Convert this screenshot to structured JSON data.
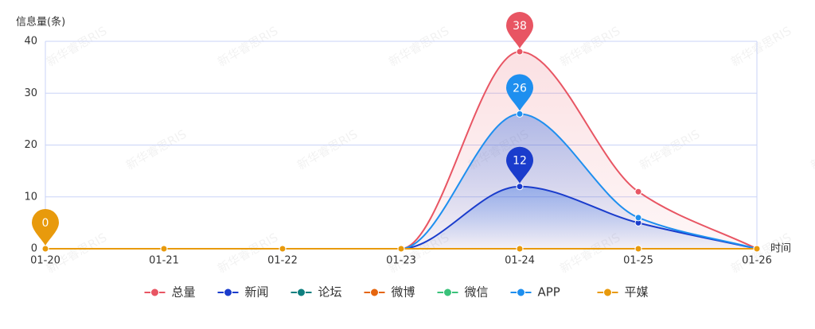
{
  "chart_data": {
    "type": "line",
    "y_label": "信息量(条)",
    "x_label": "时间",
    "watermark": "新华睿思RIS",
    "categories": [
      "01-20",
      "01-21",
      "01-22",
      "01-23",
      "01-24",
      "01-25",
      "01-26"
    ],
    "series": [
      {
        "name": "总量",
        "color": "#e85563",
        "area": true,
        "show_max_pin": true,
        "values": [
          0,
          0,
          0,
          0,
          38,
          11,
          0
        ]
      },
      {
        "name": "新闻",
        "color": "#1a3ccc",
        "area": true,
        "show_max_pin": true,
        "values": [
          0,
          0,
          0,
          0,
          12,
          5,
          0
        ]
      },
      {
        "name": "论坛",
        "color": "#0e7f7f",
        "values": [
          0,
          0,
          0,
          0,
          0,
          0,
          0
        ]
      },
      {
        "name": "微博",
        "color": "#e5650e",
        "values": [
          0,
          0,
          0,
          0,
          0,
          0,
          0
        ]
      },
      {
        "name": "微信",
        "color": "#3ac27a",
        "values": [
          0,
          0,
          0,
          0,
          0,
          0,
          0
        ]
      },
      {
        "name": "APP",
        "color": "#1e8fef",
        "area": true,
        "show_max_pin": true,
        "values": [
          0,
          0,
          0,
          0,
          26,
          6,
          0
        ]
      },
      {
        "name": "平媒",
        "color": "#e89a0c",
        "show_max_pin": true,
        "values": [
          0,
          0,
          0,
          0,
          0,
          0,
          0
        ]
      }
    ],
    "ylim": [
      0,
      40
    ],
    "yticks": [
      0,
      10,
      20,
      30,
      40
    ],
    "grid": true,
    "legend": "bottom"
  }
}
